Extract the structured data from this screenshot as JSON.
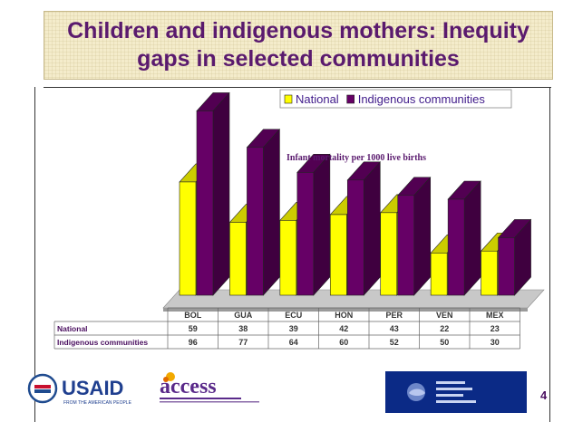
{
  "slide": {
    "title": "Children and indigenous mothers: Inequity gaps  in selected communities",
    "page_number": "4"
  },
  "logos": {
    "usaid_text": "USAID",
    "usaid_tagline": "FROM THE AMERICAN PEOPLE",
    "access_text": "access"
  },
  "chart_data": {
    "type": "bar",
    "annotation": "Infant mortality per 1000 live births",
    "categories": [
      "BOL",
      "GUA",
      "ECU",
      "HON",
      "PER",
      "VEN",
      "MEX"
    ],
    "series": [
      {
        "name": "National",
        "values": [
          59,
          38,
          39,
          42,
          43,
          22,
          23
        ],
        "color": "#ffff00"
      },
      {
        "name": "Indigenous communities",
        "values": [
          96,
          77,
          64,
          60,
          52,
          50,
          30
        ],
        "color": "#660066"
      }
    ],
    "ylim": [
      0,
      100
    ],
    "legend": "top-right",
    "grid": false,
    "data_table": true
  }
}
